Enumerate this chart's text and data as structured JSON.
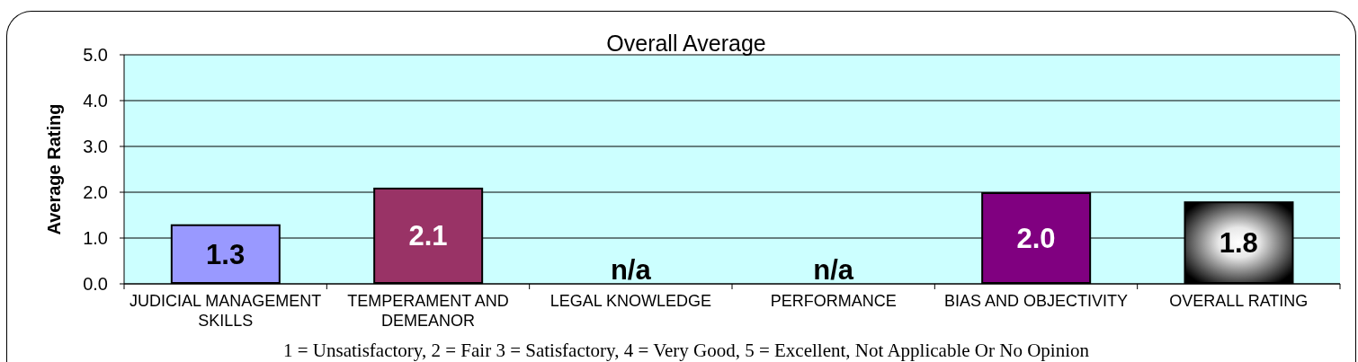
{
  "chart_data": {
    "type": "bar",
    "title": "Overall Average",
    "ylabel": "Average Rating",
    "categories": [
      "JUDICIAL MANAGEMENT SKILLS",
      "TEMPERAMENT AND DEMEANOR",
      "LEGAL KNOWLEDGE",
      "PERFORMANCE",
      "BIAS AND OBJECTIVITY",
      "OVERALL RATING"
    ],
    "values": [
      1.3,
      2.1,
      null,
      null,
      2.0,
      1.8
    ],
    "colors": [
      "#9999ff",
      "#993366",
      null,
      null,
      "#800080",
      "#000000"
    ],
    "value_labels": [
      "1.3",
      "2.1",
      "n/a",
      "n/a",
      "2.0",
      "1.8"
    ],
    "ylim": [
      0,
      5
    ],
    "yticks": [
      {
        "value": 0,
        "label": "0.0"
      },
      {
        "value": 1,
        "label": "1.0"
      },
      {
        "value": 2,
        "label": "2.0"
      },
      {
        "value": 3,
        "label": "3.0"
      },
      {
        "value": 4,
        "label": "4.0"
      },
      {
        "value": 5,
        "label": "5.0"
      }
    ],
    "grid": "y",
    "annotations": [
      "1 = Unsatisfactory, 2 = Fair 3 = Satisfactory, 4 = Very Good, 5 = Excellent, Not Applicable Or No Opinion"
    ]
  }
}
